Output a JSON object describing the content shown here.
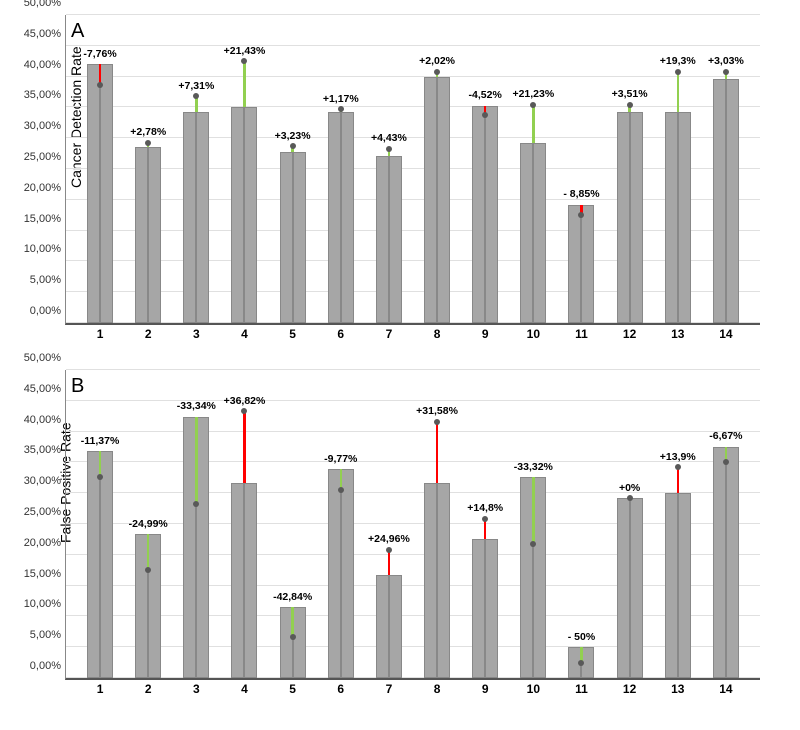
{
  "chartA": {
    "type": "bar",
    "panel_label": "A",
    "y_label": "Cancer Detection Rate",
    "ylim": [
      0,
      50
    ],
    "ytick_step": 5,
    "y_tick_labels": [
      "0,00%",
      "5,00%",
      "10,00%",
      "15,00%",
      "20,00%",
      "25,00%",
      "30,00%",
      "35,00%",
      "40,00%",
      "45,00%",
      "50,00%"
    ],
    "categories": [
      "1",
      "2",
      "3",
      "4",
      "5",
      "6",
      "7",
      "8",
      "9",
      "10",
      "11",
      "12",
      "13",
      "14"
    ],
    "bar_color": "#a6a6a6",
    "bar_border": "#888888",
    "grid_color": "#e0e0e0",
    "axis_color": "#555555",
    "dot_color": "#595959",
    "green": "#92d050",
    "red": "#ff0000",
    "label_fontsize": 10.5,
    "axis_fontsize": 11,
    "series": [
      {
        "x": "1",
        "bar1": 42.0,
        "bar2": 42.0,
        "diff": -7.76,
        "diff_label": "-7,76%",
        "line_from": 42.0,
        "line_to": 38.7,
        "color": "red",
        "dot": 38.7
      },
      {
        "x": "2",
        "bar1": 28.5,
        "bar2": 28.5,
        "diff": 2.78,
        "diff_label": "+2,78%",
        "line_from": 28.5,
        "line_to": 29.3,
        "color": "green",
        "dot": 29.3
      },
      {
        "x": "3",
        "bar1": 34.3,
        "bar2": 34.3,
        "diff": 7.31,
        "diff_label": "+7,31%",
        "line_from": 34.3,
        "line_to": 36.8,
        "color": "green",
        "dot": 36.8
      },
      {
        "x": "4",
        "bar1": 35.0,
        "bar2": 35.0,
        "diff": 21.43,
        "diff_label": "+21,43%",
        "line_from": 35.0,
        "line_to": 42.5,
        "color": "green",
        "dot": 42.5
      },
      {
        "x": "5",
        "bar1": 27.8,
        "bar2": 27.8,
        "diff": 3.23,
        "diff_label": "+3,23%",
        "line_from": 27.8,
        "line_to": 28.7,
        "color": "green",
        "dot": 28.7
      },
      {
        "x": "6",
        "bar1": 34.3,
        "bar2": 34.3,
        "diff": 1.17,
        "diff_label": "+1,17%",
        "line_from": 34.3,
        "line_to": 34.7,
        "color": "green",
        "dot": 34.7
      },
      {
        "x": "7",
        "bar1": 27.1,
        "bar2": 27.1,
        "diff": 4.43,
        "diff_label": "+4,43%",
        "line_from": 27.1,
        "line_to": 28.3,
        "color": "green",
        "dot": 28.3
      },
      {
        "x": "8",
        "bar1": 40.0,
        "bar2": 40.0,
        "diff": 2.02,
        "diff_label": "+2,02%",
        "line_from": 40.0,
        "line_to": 40.8,
        "color": "green",
        "dot": 40.8
      },
      {
        "x": "9",
        "bar1": 35.3,
        "bar2": 35.3,
        "diff": -4.52,
        "diff_label": "-4,52%",
        "line_from": 35.3,
        "line_to": 33.7,
        "color": "red",
        "dot": 33.7
      },
      {
        "x": "10",
        "bar1": 29.2,
        "bar2": 29.2,
        "diff": 21.23,
        "diff_label": "+21,23%",
        "line_from": 29.2,
        "line_to": 35.4,
        "color": "green",
        "dot": 35.4
      },
      {
        "x": "11",
        "bar1": 19.2,
        "bar2": 19.2,
        "diff": -8.85,
        "diff_label": "- 8,85%",
        "line_from": 19.2,
        "line_to": 17.5,
        "color": "red",
        "dot": 17.5
      },
      {
        "x": "12",
        "bar1": 34.2,
        "bar2": 34.2,
        "diff": 3.51,
        "diff_label": "+3,51%",
        "line_from": 34.2,
        "line_to": 35.4,
        "color": "green",
        "dot": 35.4
      },
      {
        "x": "13",
        "bar1": 34.2,
        "bar2": 34.2,
        "diff": 19.3,
        "diff_label": "+19,3%",
        "line_from": 34.2,
        "line_to": 40.8,
        "color": "green",
        "dot": 40.8
      },
      {
        "x": "14",
        "bar1": 39.6,
        "bar2": 39.6,
        "diff": 3.03,
        "diff_label": "+3,03%",
        "line_from": 39.6,
        "line_to": 40.8,
        "color": "green",
        "dot": 40.8
      }
    ]
  },
  "chartB": {
    "type": "bar",
    "panel_label": "B",
    "y_label": "False Positive Rate",
    "ylim": [
      0,
      50
    ],
    "ytick_step": 5,
    "y_tick_labels": [
      "0,00%",
      "5,00%",
      "10,00%",
      "15,00%",
      "20,00%",
      "25,00%",
      "30,00%",
      "35,00%",
      "40,00%",
      "45,00%",
      "50,00%"
    ],
    "categories": [
      "1",
      "2",
      "3",
      "4",
      "5",
      "6",
      "7",
      "8",
      "9",
      "10",
      "11",
      "12",
      "13",
      "14"
    ],
    "bar_color": "#a6a6a6",
    "bar_border": "#888888",
    "grid_color": "#e0e0e0",
    "axis_color": "#555555",
    "dot_color": "#595959",
    "green": "#92d050",
    "red": "#ff0000",
    "label_fontsize": 10.5,
    "axis_fontsize": 11,
    "series": [
      {
        "x": "1",
        "bar1": 36.8,
        "bar2": 36.8,
        "diff": -11.37,
        "diff_label": "-11,37%",
        "line_from": 36.8,
        "line_to": 32.6,
        "color": "green",
        "dot": 32.6
      },
      {
        "x": "2",
        "bar1": 23.3,
        "bar2": 23.3,
        "diff": -24.99,
        "diff_label": "-24,99%",
        "line_from": 23.3,
        "line_to": 17.5,
        "color": "green",
        "dot": 17.5
      },
      {
        "x": "3",
        "bar1": 42.4,
        "bar2": 42.4,
        "diff": -33.34,
        "diff_label": "-33,34%",
        "line_from": 42.4,
        "line_to": 28.3,
        "color": "green",
        "dot": 28.3
      },
      {
        "x": "4",
        "bar1": 31.7,
        "bar2": 31.7,
        "diff": 36.82,
        "diff_label": "+36,82%",
        "line_from": 31.7,
        "line_to": 43.3,
        "color": "red",
        "dot": 43.3
      },
      {
        "x": "5",
        "bar1": 11.5,
        "bar2": 11.5,
        "diff": -42.84,
        "diff_label": "-42,84%",
        "line_from": 11.5,
        "line_to": 6.6,
        "color": "green",
        "dot": 6.6
      },
      {
        "x": "6",
        "bar1": 33.9,
        "bar2": 33.9,
        "diff": -9.77,
        "diff_label": "-9,77%",
        "line_from": 33.9,
        "line_to": 30.6,
        "color": "green",
        "dot": 30.6
      },
      {
        "x": "7",
        "bar1": 16.7,
        "bar2": 16.7,
        "diff": 24.96,
        "diff_label": "+24,96%",
        "line_from": 16.7,
        "line_to": 20.8,
        "color": "red",
        "dot": 20.8
      },
      {
        "x": "8",
        "bar1": 31.6,
        "bar2": 31.6,
        "diff": 31.58,
        "diff_label": "+31,58%",
        "line_from": 31.6,
        "line_to": 41.6,
        "color": "red",
        "dot": 41.6
      },
      {
        "x": "9",
        "bar1": 22.5,
        "bar2": 22.5,
        "diff": 14.8,
        "diff_label": "+14,8%",
        "line_from": 22.5,
        "line_to": 25.8,
        "color": "red",
        "dot": 25.8
      },
      {
        "x": "10",
        "bar1": 32.6,
        "bar2": 32.6,
        "diff": -33.32,
        "diff_label": "-33,32%",
        "line_from": 32.6,
        "line_to": 21.7,
        "color": "green",
        "dot": 21.7
      },
      {
        "x": "11",
        "bar1": 5.0,
        "bar2": 5.0,
        "diff": -50,
        "diff_label": "- 50%",
        "line_from": 5.0,
        "line_to": 2.5,
        "color": "green",
        "dot": 2.5
      },
      {
        "x": "12",
        "bar1": 29.2,
        "bar2": 29.2,
        "diff": 0,
        "diff_label": "+0%",
        "line_from": 29.2,
        "line_to": 29.2,
        "color": "green",
        "dot": 29.2
      },
      {
        "x": "13",
        "bar1": 30.0,
        "bar2": 30.0,
        "diff": 13.9,
        "diff_label": "+13,9%",
        "line_from": 30.0,
        "line_to": 34.2,
        "color": "red",
        "dot": 34.2
      },
      {
        "x": "14",
        "bar1": 37.5,
        "bar2": 37.5,
        "diff": -6.67,
        "diff_label": "-6,67%",
        "line_from": 37.5,
        "line_to": 35.0,
        "color": "green",
        "dot": 35.0
      }
    ]
  }
}
